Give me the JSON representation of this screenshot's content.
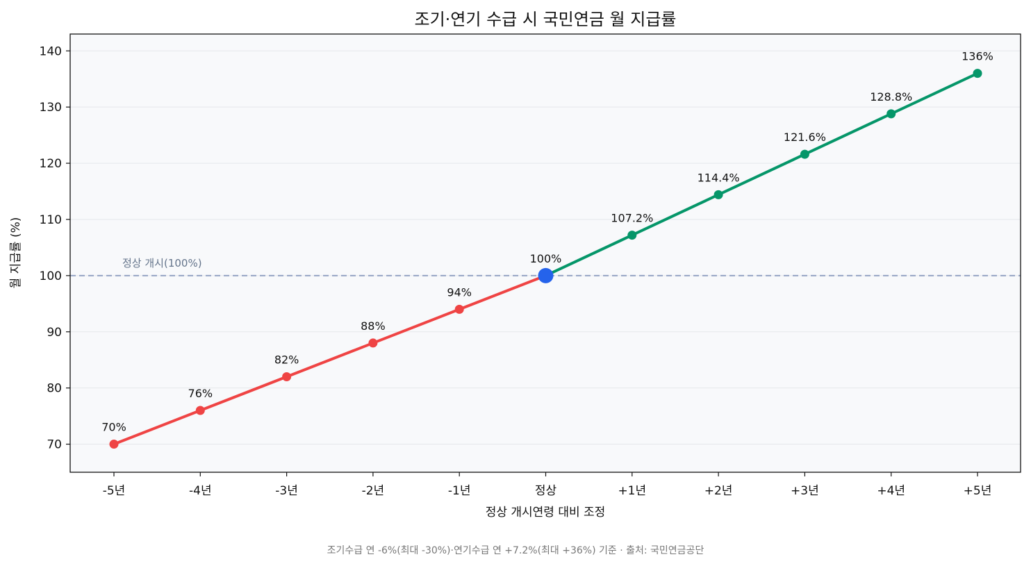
{
  "chart_data": {
    "type": "line",
    "title": "조기·연기 수급 시 국민연금 월 지급률",
    "xlabel": "정상 개시연령 대비 조정",
    "ylabel": "월 지급률 (%)",
    "ylim": [
      65,
      143
    ],
    "yticks": [
      70,
      80,
      90,
      100,
      110,
      120,
      130,
      140
    ],
    "grid": "horizontal",
    "categories": [
      "-5년",
      "-4년",
      "-3년",
      "-2년",
      "-1년",
      "정상",
      "+1년",
      "+2년",
      "+3년",
      "+4년",
      "+5년"
    ],
    "values": [
      70,
      76,
      82,
      88,
      94,
      100,
      107.2,
      114.4,
      121.6,
      128.8,
      136
    ],
    "value_labels": [
      "70%",
      "76%",
      "82%",
      "88%",
      "94%",
      "100%",
      "107.2%",
      "114.4%",
      "121.6%",
      "128.8%",
      "136%"
    ],
    "segments": [
      {
        "from_index": 0,
        "to_index": 5,
        "color": "#ef4444"
      },
      {
        "from_index": 5,
        "to_index": 10,
        "color": "#059669"
      }
    ],
    "highlight": {
      "index": 5,
      "color": "#2563eb"
    },
    "reference_line": {
      "y": 100,
      "label": "정상 개시(100%)",
      "color": "#94a3c4",
      "style": "dashed"
    },
    "footnote": "조기수급 연 -6%(최대 -30%)·연기수급 연 +7.2%(최대 +36%) 기준 · 출처: 국민연금공단"
  },
  "colors": {
    "plot_background": "#f8f9fb",
    "grid": "#e5e7eb",
    "axis": "#111111"
  }
}
